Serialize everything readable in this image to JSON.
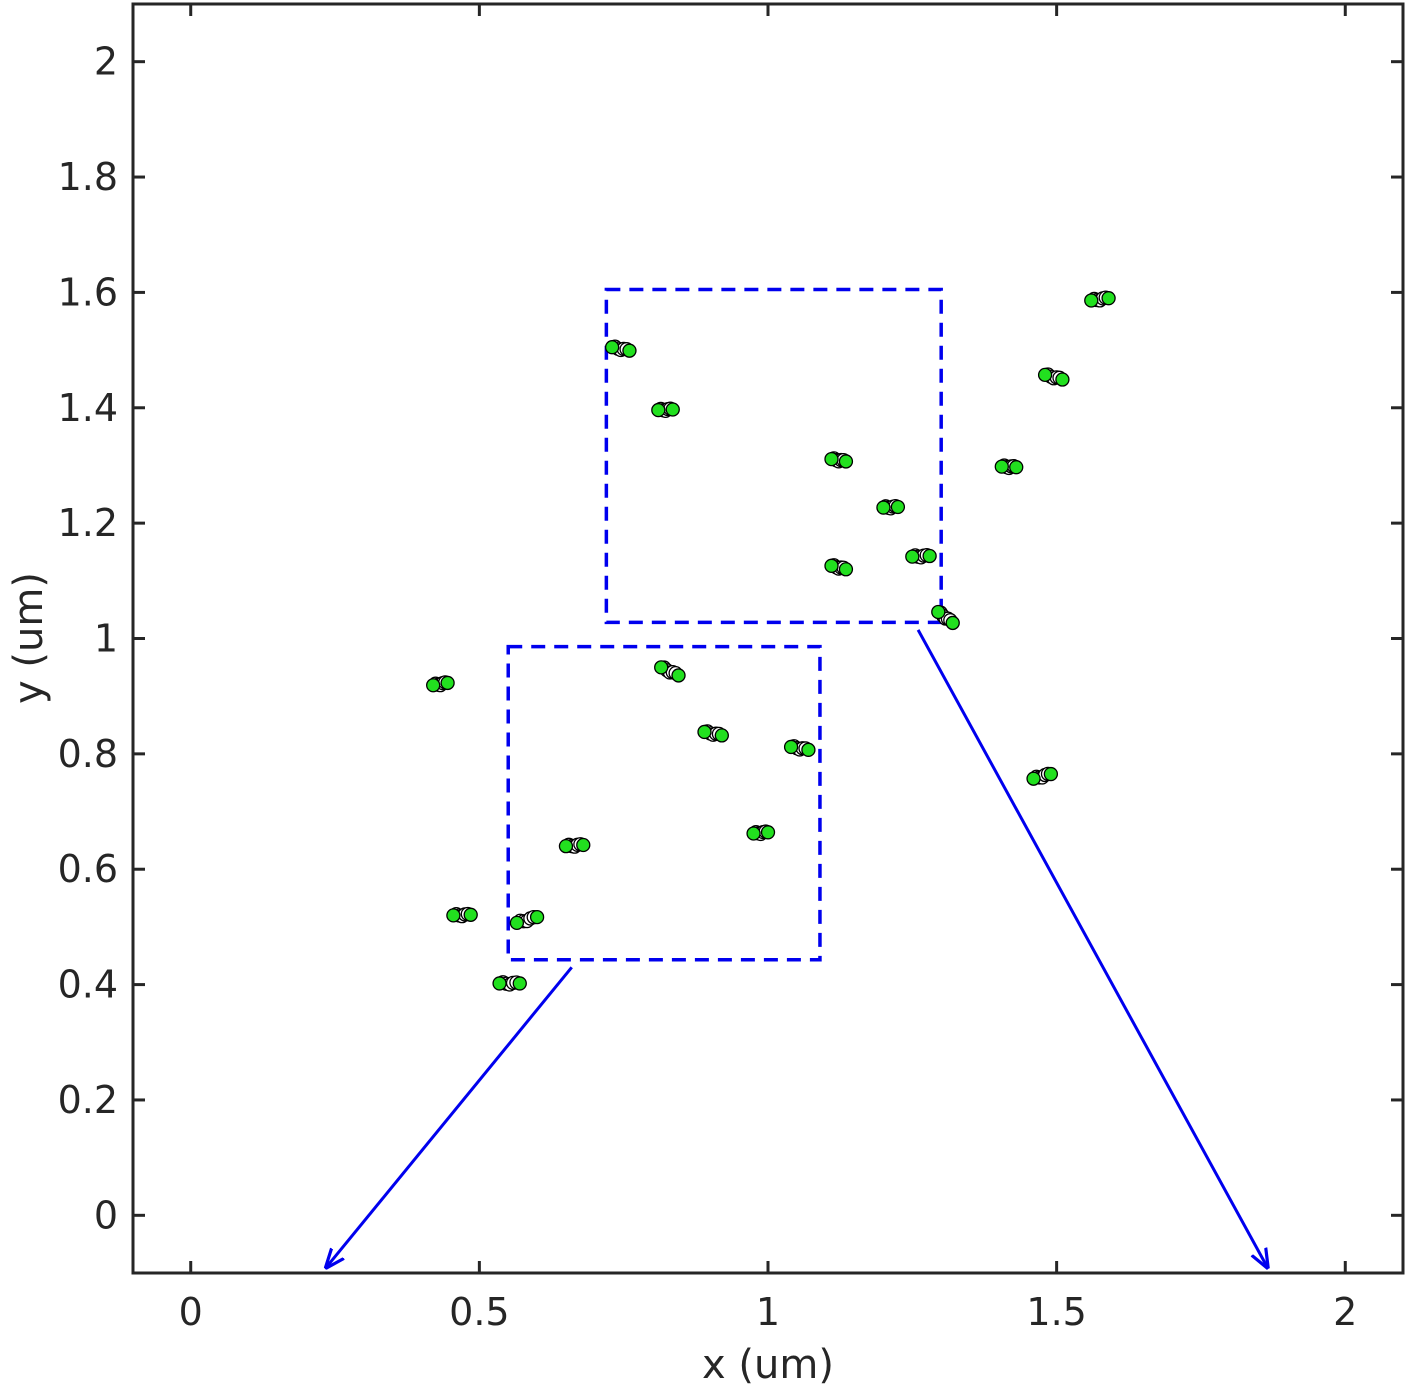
{
  "chart_data": {
    "type": "scatter",
    "xlabel": "x (um)",
    "ylabel": "y (um)",
    "xlim": [
      -0.1,
      2.1
    ],
    "ylim": [
      -0.1,
      2.1
    ],
    "xticks": [
      0,
      0.5,
      1,
      1.5,
      2
    ],
    "yticks": [
      0,
      0.2,
      0.4,
      0.6,
      0.8,
      1,
      1.2,
      1.4,
      1.6,
      1.8,
      2
    ],
    "xtick_labels": [
      "0",
      "0.5",
      "1",
      "1.5",
      "2"
    ],
    "ytick_labels": [
      "0",
      "0.2",
      "0.4",
      "0.6",
      "0.8",
      "1",
      "1.2",
      "1.4",
      "1.6",
      "1.8",
      "2"
    ],
    "grid": false,
    "colors": {
      "marker_fill": "#22e01f",
      "marker_trail_fill": "#ffffff",
      "marker_edge": "#000000",
      "annotation": "#0000ee",
      "axis": "#262626"
    },
    "clusters": [
      {
        "start": [
          0.73,
          1.505
        ],
        "end": [
          0.76,
          1.499
        ]
      },
      {
        "start": [
          0.81,
          1.396
        ],
        "end": [
          0.835,
          1.397
        ]
      },
      {
        "start": [
          1.11,
          1.311
        ],
        "end": [
          1.135,
          1.307
        ]
      },
      {
        "start": [
          1.2,
          1.227
        ],
        "end": [
          1.225,
          1.228
        ]
      },
      {
        "start": [
          1.25,
          1.142
        ],
        "end": [
          1.28,
          1.143
        ]
      },
      {
        "start": [
          1.11,
          1.126
        ],
        "end": [
          1.135,
          1.12
        ]
      },
      {
        "start": [
          1.295,
          1.046
        ],
        "end": [
          1.32,
          1.027
        ]
      },
      {
        "start": [
          1.405,
          1.298
        ],
        "end": [
          1.43,
          1.297
        ]
      },
      {
        "start": [
          1.48,
          1.457
        ],
        "end": [
          1.51,
          1.449
        ]
      },
      {
        "start": [
          1.56,
          1.586
        ],
        "end": [
          1.59,
          1.59
        ]
      },
      {
        "start": [
          0.42,
          0.919
        ],
        "end": [
          0.445,
          0.923
        ]
      },
      {
        "start": [
          0.815,
          0.95
        ],
        "end": [
          0.845,
          0.936
        ]
      },
      {
        "start": [
          0.89,
          0.838
        ],
        "end": [
          0.92,
          0.832
        ]
      },
      {
        "start": [
          1.04,
          0.812
        ],
        "end": [
          1.07,
          0.807
        ]
      },
      {
        "start": [
          1.46,
          0.757
        ],
        "end": [
          1.49,
          0.765
        ]
      },
      {
        "start": [
          0.975,
          0.662
        ],
        "end": [
          1.0,
          0.664
        ]
      },
      {
        "start": [
          0.65,
          0.64
        ],
        "end": [
          0.68,
          0.642
        ]
      },
      {
        "start": [
          0.455,
          0.52
        ],
        "end": [
          0.485,
          0.521
        ]
      },
      {
        "start": [
          0.565,
          0.507
        ],
        "end": [
          0.6,
          0.517
        ]
      },
      {
        "start": [
          0.535,
          0.402
        ],
        "end": [
          0.57,
          0.402
        ]
      }
    ],
    "annotations": {
      "boxes": [
        {
          "x0": 0.72,
          "x1": 1.3,
          "y0": 1.028,
          "y1": 1.605
        },
        {
          "x0": 0.55,
          "x1": 1.09,
          "y0": 0.443,
          "y1": 0.986
        }
      ],
      "arrows": [
        {
          "from": [
            0.66,
            0.43
          ],
          "to": [
            0.235,
            -0.09
          ]
        },
        {
          "from": [
            1.26,
            1.015
          ],
          "to": [
            1.865,
            -0.09
          ]
        }
      ]
    }
  }
}
